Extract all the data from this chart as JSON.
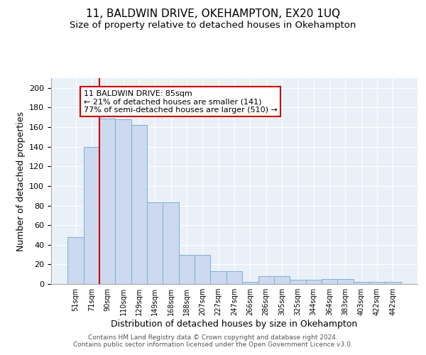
{
  "title1": "11, BALDWIN DRIVE, OKEHAMPTON, EX20 1UQ",
  "title2": "Size of property relative to detached houses in Okehampton",
  "xlabel": "Distribution of detached houses by size in Okehampton",
  "ylabel": "Number of detached properties",
  "categories": [
    "51sqm",
    "71sqm",
    "90sqm",
    "110sqm",
    "129sqm",
    "149sqm",
    "168sqm",
    "188sqm",
    "207sqm",
    "227sqm",
    "247sqm",
    "266sqm",
    "286sqm",
    "305sqm",
    "325sqm",
    "344sqm",
    "364sqm",
    "383sqm",
    "403sqm",
    "422sqm",
    "442sqm"
  ],
  "values": [
    48,
    140,
    169,
    168,
    162,
    83,
    83,
    30,
    30,
    13,
    13,
    2,
    8,
    8,
    4,
    4,
    5,
    5,
    2,
    2,
    2
  ],
  "bar_color": "#ccd9ee",
  "bar_edge_color": "#7bafd4",
  "vline_x": 1.5,
  "vline_color": "#cc0000",
  "annotation_text": "11 BALDWIN DRIVE: 85sqm\n← 21% of detached houses are smaller (141)\n77% of semi-detached houses are larger (510) →",
  "annotation_box_color": "#ffffff",
  "annotation_box_edge": "#cc0000",
  "ylim": [
    0,
    210
  ],
  "yticks": [
    0,
    20,
    40,
    60,
    80,
    100,
    120,
    140,
    160,
    180,
    200
  ],
  "background_color": "#eaf0f8",
  "footer": "Contains HM Land Registry data © Crown copyright and database right 2024.\nContains public sector information licensed under the Open Government Licence v3.0.",
  "title1_fontsize": 11,
  "title2_fontsize": 9.5,
  "xlabel_fontsize": 9,
  "ylabel_fontsize": 9
}
